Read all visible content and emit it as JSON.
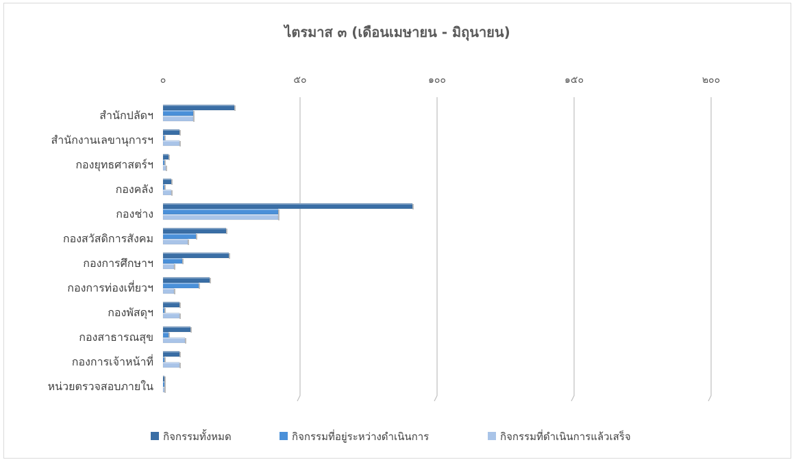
{
  "chart_data": {
    "type": "bar",
    "orientation": "horizontal",
    "title": "ไตรมาส ๓ (เดือนเมษายน - มิถุนายน)",
    "xlim": [
      0,
      200
    ],
    "x_ticks": [
      "๐",
      "๕๐",
      "๑๐๐",
      "๑๕๐",
      "๒๐๐"
    ],
    "x_tick_values": [
      0,
      50,
      100,
      150,
      200
    ],
    "grid": true,
    "legend_position": "bottom",
    "categories": [
      "สำนักปลัดฯ",
      "สำนักงานเลขานุการฯ",
      "กองยุทธศาสตร์ฯ",
      "กองคลัง",
      "กองช่าง",
      "กองสวัสดิการสังคม",
      "กองการศึกษาฯ",
      "กองการท่องเที่ยวฯ",
      "กองพัสดุฯ",
      "กองสาธารณสุข",
      "กองการเจ้าหน้าที่",
      "หน่วยตรวจสอบภายใน"
    ],
    "series": [
      {
        "name": "กิจกรรมทั้งหมด",
        "color": "#3a6ea5",
        "values": [
          26,
          6,
          2,
          3,
          91,
          23,
          24,
          17,
          6,
          10,
          6,
          0
        ]
      },
      {
        "name": "กิจกรรมที่อยู่ระหว่างดำเนินการ",
        "color": "#4a90d9",
        "values": [
          11,
          0,
          0,
          0,
          42,
          12,
          7,
          13,
          0,
          2,
          0,
          0
        ]
      },
      {
        "name": "กิจกรรมที่ดำเนินการแล้วเสร็จ",
        "color": "#a9c4e8",
        "values": [
          11,
          6,
          1,
          3,
          42,
          9,
          4,
          4,
          6,
          8,
          6,
          0
        ]
      }
    ]
  }
}
